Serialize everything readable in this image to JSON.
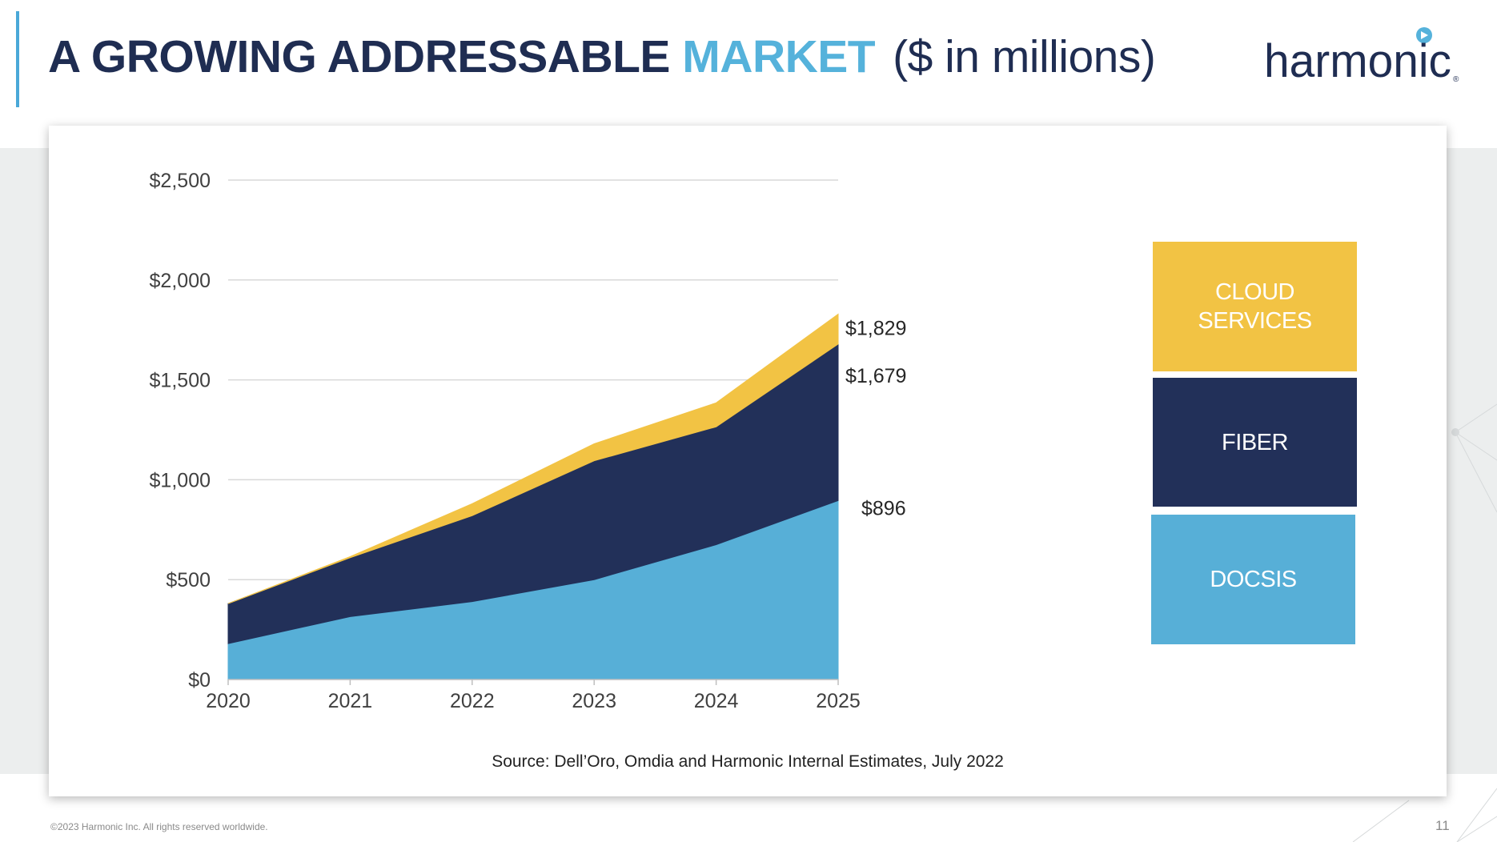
{
  "slide": {
    "title_main": "A GROWING ADDRESSABLE",
    "title_highlight": "MARKET",
    "title_unit": "($ in millions)",
    "logo_text": "harmonic",
    "logo_mark": "®",
    "source": "Source: Dell’Oro, Omdia and Harmonic Internal Estimates, July 2022",
    "footer": "©2023 Harmonic Inc. All rights reserved worldwide.",
    "page_number": "11"
  },
  "colors": {
    "navy": "#223059",
    "light_blue": "#57afd7",
    "gold": "#f2c344",
    "title_navy": "#1f2d52",
    "title_accent": "#55b2db"
  },
  "chart_data": {
    "type": "area",
    "stacked": true,
    "categories": [
      "2020",
      "2021",
      "2022",
      "2023",
      "2024",
      "2025"
    ],
    "series": [
      {
        "name": "DOCSIS",
        "color": "#57afd7",
        "values": [
          180,
          315,
          390,
          500,
          675,
          896
        ]
      },
      {
        "name": "FIBER",
        "color": "#223059",
        "values": [
          200,
          295,
          430,
          595,
          590,
          783
        ]
      },
      {
        "name": "CLOUD SERVICES",
        "color": "#f2c344",
        "values": [
          0,
          5,
          60,
          85,
          120,
          150
        ]
      }
    ],
    "ylim": [
      0,
      2500
    ],
    "yticks": [
      0,
      500,
      1000,
      1500,
      2000,
      2500
    ],
    "ytick_labels": [
      "$0",
      "$500",
      "$1,000",
      "$1,500",
      "$2,000",
      "$2,500"
    ],
    "end_labels": [
      "$896",
      "$1,679",
      "$1,829"
    ],
    "legend": [
      {
        "line1": "CLOUD",
        "line2": "SERVICES"
      },
      {
        "line1": "FIBER",
        "line2": ""
      },
      {
        "line1": "DOCSIS",
        "line2": ""
      }
    ],
    "grid": true,
    "legend_position": "right"
  }
}
